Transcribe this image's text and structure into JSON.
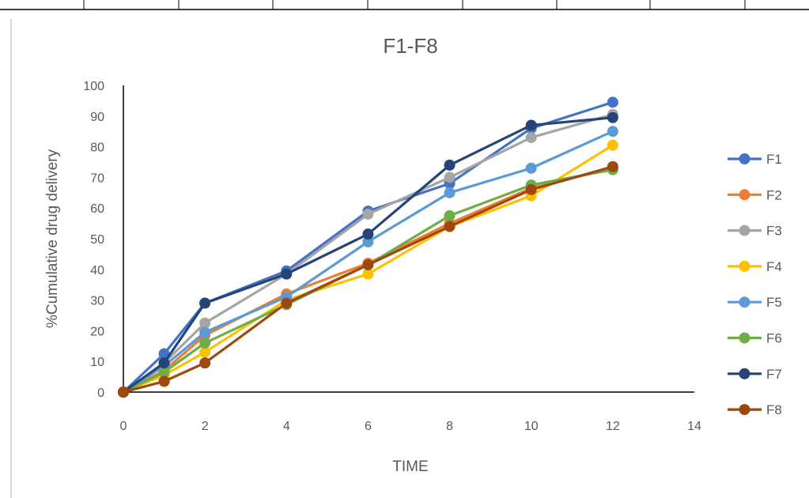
{
  "chart_data": {
    "type": "line",
    "title": "F1-F8",
    "xlabel": "TIME",
    "ylabel": "%Cumulative drug delivery",
    "xlim": [
      0,
      14
    ],
    "ylim": [
      0,
      100
    ],
    "x_ticks": [
      0,
      2,
      4,
      6,
      8,
      10,
      12,
      14
    ],
    "y_ticks": [
      0,
      10,
      20,
      30,
      40,
      50,
      60,
      70,
      80,
      90,
      100
    ],
    "x": [
      0,
      1,
      2,
      4,
      6,
      8,
      10,
      12
    ],
    "grid": false,
    "legend_position": "right",
    "series": [
      {
        "name": "F1",
        "color": "#4472C4",
        "values": [
          0,
          12.5,
          29,
          39.5,
          59,
          68,
          86,
          94.5
        ]
      },
      {
        "name": "F2",
        "color": "#ED7D31",
        "values": [
          0,
          7,
          18.5,
          32,
          42,
          55,
          66.5,
          73
        ]
      },
      {
        "name": "F3",
        "color": "#A5A5A5",
        "values": [
          0,
          9.5,
          22.5,
          38.5,
          58,
          70,
          83,
          90.5
        ]
      },
      {
        "name": "F4",
        "color": "#FFC000",
        "values": [
          0,
          5.5,
          13,
          30,
          38.5,
          54,
          64,
          80.5
        ]
      },
      {
        "name": "F5",
        "color": "#5B9BD5",
        "values": [
          0,
          8.5,
          19.5,
          31,
          49,
          65,
          73,
          85
        ]
      },
      {
        "name": "F6",
        "color": "#70AD47",
        "values": [
          0,
          6.5,
          16,
          28.5,
          41.5,
          57.5,
          67.5,
          72.5
        ]
      },
      {
        "name": "F7",
        "color": "#264478",
        "values": [
          0,
          9.5,
          29,
          38.5,
          51.5,
          74,
          87,
          89.5
        ]
      },
      {
        "name": "F8",
        "color": "#9E480E",
        "values": [
          0,
          3.5,
          9.5,
          29,
          41.5,
          54,
          66,
          73.5
        ]
      }
    ]
  }
}
